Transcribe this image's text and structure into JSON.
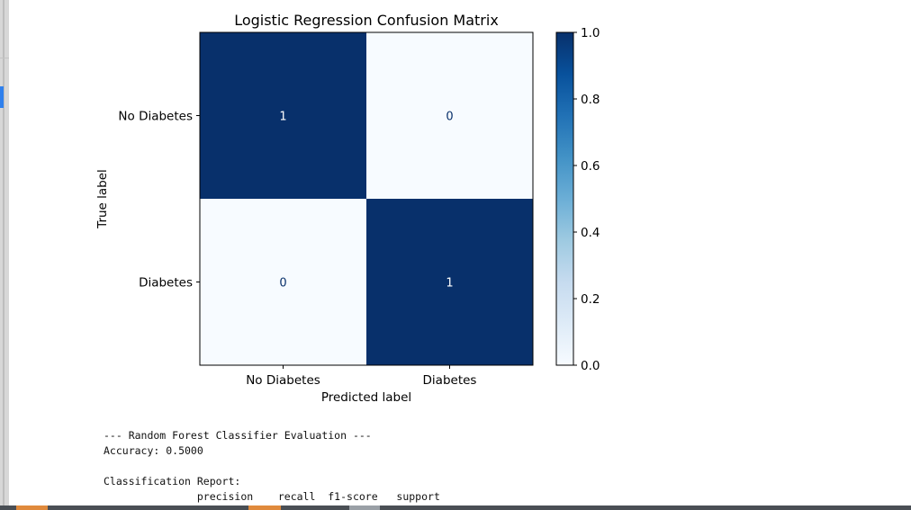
{
  "chart_data": {
    "type": "heatmap",
    "title": "Logistic Regression Confusion Matrix",
    "xlabel": "Predicted label",
    "ylabel": "True label",
    "x_categories": [
      "No Diabetes",
      "Diabetes"
    ],
    "y_categories": [
      "No Diabetes",
      "Diabetes"
    ],
    "values": [
      [
        1,
        0
      ],
      [
        0,
        1
      ]
    ],
    "colormap": "Blues",
    "colorbar": {
      "min": 0.0,
      "max": 1.0,
      "ticks": [
        "0.0",
        "0.2",
        "0.4",
        "0.6",
        "0.8",
        "1.0"
      ]
    },
    "colors": {
      "high": "#08306b",
      "low": "#f7fbff",
      "text_on_dark": "#ffffff",
      "text_on_light": "#08306b"
    }
  },
  "report": {
    "lines": [
      "--- Random Forest Classifier Evaluation ---",
      "Accuracy: 0.5000",
      "",
      "Classification Report:",
      "               precision    recall  f1-score   support"
    ]
  },
  "bottom_bar": {
    "colors": {
      "base": "#4a4f55",
      "accent": "#e08a3c",
      "mid": "#9aa0a6"
    }
  }
}
